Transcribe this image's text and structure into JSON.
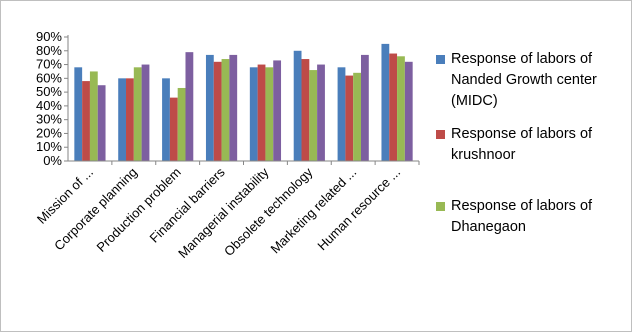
{
  "chart_data": {
    "type": "bar",
    "title": "",
    "xlabel": "",
    "ylabel": "",
    "ylim": [
      0,
      90
    ],
    "yticks": [
      "0%",
      "10%",
      "20%",
      "30%",
      "40%",
      "50%",
      "60%",
      "70%",
      "80%",
      "90%"
    ],
    "categories": [
      "Mission of ...",
      "Corporate planning",
      "Production problem",
      "Financial barriers",
      "Managerial instability",
      "Obsolete technology",
      "Marketing related ...",
      "Human resource ..."
    ],
    "series": [
      {
        "name": "Response of labors of Nanded Growth center (MIDC)",
        "color": "#4a7ebb",
        "values": [
          68,
          60,
          60,
          77,
          68,
          80,
          68,
          85
        ]
      },
      {
        "name": "Response of  labors of krushnoor",
        "color": "#be4b48",
        "values": [
          58,
          60,
          46,
          72,
          70,
          74,
          62,
          78
        ]
      },
      {
        "name": "Response of labors of Dhanegaon",
        "color": "#98b954",
        "values": [
          65,
          68,
          53,
          74,
          68,
          66,
          64,
          76
        ]
      },
      {
        "name": "",
        "color": "#7d5fa0",
        "values": [
          55,
          70,
          79,
          77,
          73,
          70,
          77,
          72
        ]
      }
    ],
    "grid": false,
    "legend_position": "right"
  }
}
